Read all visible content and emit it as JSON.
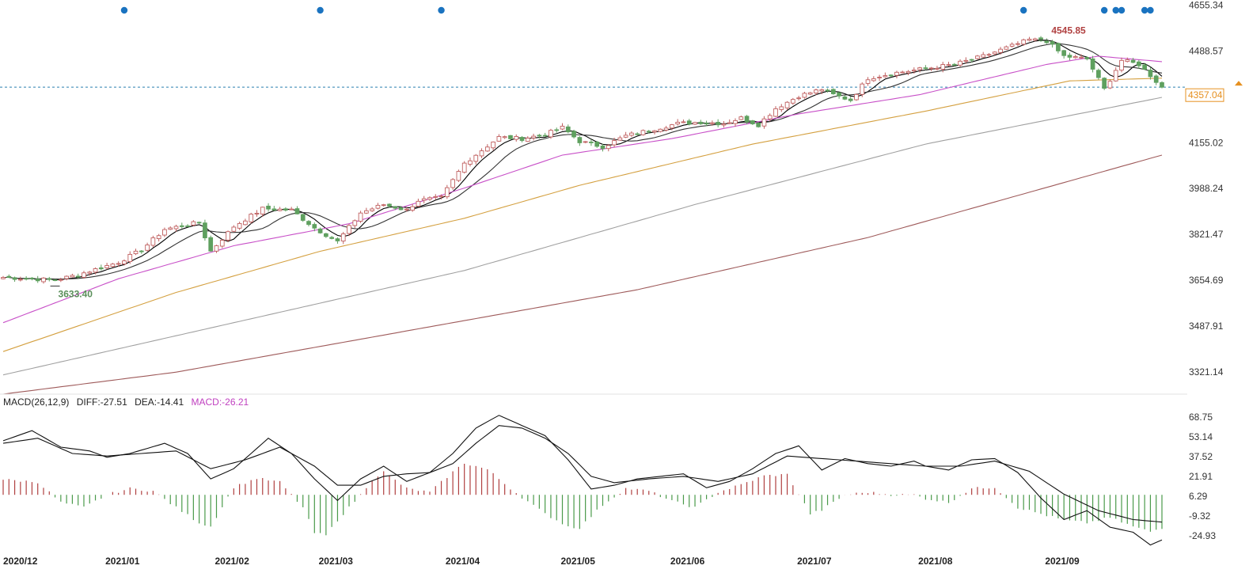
{
  "chart_data": [
    {
      "type": "candlestick",
      "panel": "price",
      "ylim": [
        3240,
        4660
      ],
      "y_ticks": [
        4655.34,
        4488.57,
        4321.8,
        4155.02,
        3988.24,
        3821.47,
        3654.69,
        3487.91,
        3321.14
      ],
      "y_tick_labels": [
        "4655.34",
        "4488.57",
        "4321.80",
        "4155.02",
        "3988.24",
        "3821.47",
        "3654.69",
        "3487.91",
        "3321.14"
      ],
      "x_months": [
        {
          "label": "2020/12",
          "index": 0
        },
        {
          "label": "2021/01",
          "index": 18
        },
        {
          "label": "2021/02",
          "index": 37
        },
        {
          "label": "2021/03",
          "index": 55
        },
        {
          "label": "2021/04",
          "index": 77
        },
        {
          "label": "2021/05",
          "index": 97
        },
        {
          "label": "2021/06",
          "index": 116
        },
        {
          "label": "2021/07",
          "index": 138
        },
        {
          "label": "2021/08",
          "index": 159
        },
        {
          "label": "2021/09",
          "index": 181
        }
      ],
      "n_bars": 202,
      "price_keypoints": [
        [
          0,
          3665
        ],
        [
          9,
          3655
        ],
        [
          13,
          3675
        ],
        [
          20,
          3720
        ],
        [
          24,
          3765
        ],
        [
          28,
          3840
        ],
        [
          34,
          3865
        ],
        [
          36,
          3760
        ],
        [
          40,
          3850
        ],
        [
          45,
          3915
        ],
        [
          50,
          3910
        ],
        [
          54,
          3845
        ],
        [
          58,
          3795
        ],
        [
          62,
          3900
        ],
        [
          66,
          3930
        ],
        [
          70,
          3910
        ],
        [
          72,
          3945
        ],
        [
          76,
          3955
        ],
        [
          80,
          4080
        ],
        [
          86,
          4175
        ],
        [
          90,
          4170
        ],
        [
          94,
          4185
        ],
        [
          97,
          4210
        ],
        [
          100,
          4160
        ],
        [
          104,
          4140
        ],
        [
          108,
          4180
        ],
        [
          112,
          4200
        ],
        [
          117,
          4225
        ],
        [
          121,
          4230
        ],
        [
          125,
          4225
        ],
        [
          128,
          4245
        ],
        [
          131,
          4220
        ],
        [
          134,
          4280
        ],
        [
          138,
          4325
        ],
        [
          142,
          4350
        ],
        [
          144,
          4330
        ],
        [
          147,
          4310
        ],
        [
          150,
          4390
        ],
        [
          155,
          4410
        ],
        [
          160,
          4425
        ],
        [
          165,
          4440
        ],
        [
          170,
          4470
        ],
        [
          174,
          4500
        ],
        [
          178,
          4530
        ],
        [
          181,
          4525
        ],
        [
          184,
          4470
        ],
        [
          188,
          4460
        ],
        [
          191,
          4350
        ],
        [
          194,
          4455
        ],
        [
          197,
          4440
        ],
        [
          199,
          4400
        ],
        [
          201,
          4357
        ]
      ],
      "moving_averages": [
        {
          "name": "MA5",
          "color": "#000000",
          "lag": 2
        },
        {
          "name": "MA10",
          "color": "#333333",
          "lag": 5
        },
        {
          "name": "MA20",
          "color": "#c850c8",
          "keypoints": [
            [
              0,
              3500
            ],
            [
              20,
              3660
            ],
            [
              40,
              3780
            ],
            [
              60,
              3860
            ],
            [
              80,
              3990
            ],
            [
              97,
              4110
            ],
            [
              116,
              4170
            ],
            [
              138,
              4260
            ],
            [
              159,
              4330
            ],
            [
              181,
              4440
            ],
            [
              190,
              4470
            ],
            [
              201,
              4450
            ]
          ]
        },
        {
          "name": "MA60",
          "color": "#d4a040",
          "keypoints": [
            [
              0,
              3395
            ],
            [
              30,
              3610
            ],
            [
              55,
              3760
            ],
            [
              80,
              3880
            ],
            [
              100,
              4000
            ],
            [
              130,
              4150
            ],
            [
              160,
              4270
            ],
            [
              185,
              4380
            ],
            [
              201,
              4390
            ]
          ]
        },
        {
          "name": "MA120",
          "color": "#a0a0a0",
          "keypoints": [
            [
              0,
              3310
            ],
            [
              40,
              3500
            ],
            [
              80,
              3690
            ],
            [
              120,
              3930
            ],
            [
              160,
              4150
            ],
            [
              201,
              4320
            ]
          ]
        },
        {
          "name": "MA250",
          "color": "#9e5a5a",
          "keypoints": [
            [
              0,
              3240
            ],
            [
              30,
              3320
            ],
            [
              70,
              3470
            ],
            [
              110,
              3620
            ],
            [
              150,
              3810
            ],
            [
              201,
              4110
            ]
          ]
        }
      ],
      "last_price": 4357.04,
      "last_price_label": "4357.04",
      "reference_line": 4357.04,
      "high_annotation": {
        "label": "4545.85",
        "value": 4545.85,
        "index": 181
      },
      "low_annotation": {
        "label": "3633.40",
        "value": 3633.4,
        "index": 9
      },
      "signal_dots": [
        21,
        55,
        76,
        177,
        191,
        193,
        194,
        198,
        199
      ],
      "colors": {
        "up": "#c06060",
        "down": "#5fa05f",
        "grid_ref": "#2a7fb0",
        "last_price": "#e69020",
        "high_label": "#b04040",
        "low_label": "#5a8f5a",
        "dots": "#1a73c0"
      }
    },
    {
      "type": "macd",
      "panel": "macd",
      "title": "MACD(26,12,9)",
      "legend": [
        {
          "label": "DIFF:-27.51",
          "color": "#222222"
        },
        {
          "label": "DEA:-14.41",
          "color": "#222222"
        },
        {
          "label": "MACD:-26.21",
          "color": "#c040c0"
        }
      ],
      "ylim": [
        -36,
        73
      ],
      "y_ticks": [
        68.75,
        53.14,
        37.52,
        21.91,
        6.29,
        -9.32,
        -24.93
      ],
      "y_tick_labels": [
        "68.75",
        "53.14",
        "37.52",
        "21.91",
        "6.29",
        "-9.32",
        "-24.93"
      ],
      "diff_keypoints": [
        [
          0,
          50
        ],
        [
          5,
          58
        ],
        [
          10,
          45
        ],
        [
          15,
          42
        ],
        [
          18,
          37
        ],
        [
          22,
          40
        ],
        [
          28,
          48
        ],
        [
          32,
          40
        ],
        [
          36,
          20
        ],
        [
          40,
          28
        ],
        [
          46,
          52
        ],
        [
          50,
          40
        ],
        [
          54,
          20
        ],
        [
          58,
          3
        ],
        [
          62,
          20
        ],
        [
          66,
          30
        ],
        [
          70,
          18
        ],
        [
          74,
          25
        ],
        [
          78,
          40
        ],
        [
          82,
          60
        ],
        [
          86,
          70
        ],
        [
          90,
          62
        ],
        [
          94,
          54
        ],
        [
          98,
          35
        ],
        [
          102,
          12
        ],
        [
          106,
          15
        ],
        [
          110,
          20
        ],
        [
          114,
          22
        ],
        [
          118,
          24
        ],
        [
          122,
          13
        ],
        [
          126,
          18
        ],
        [
          130,
          28
        ],
        [
          134,
          40
        ],
        [
          138,
          46
        ],
        [
          142,
          27
        ],
        [
          146,
          36
        ],
        [
          150,
          32
        ],
        [
          154,
          30
        ],
        [
          158,
          34
        ],
        [
          160,
          30
        ],
        [
          164,
          27
        ],
        [
          168,
          35
        ],
        [
          172,
          36
        ],
        [
          176,
          25
        ],
        [
          180,
          5
        ],
        [
          184,
          -12
        ],
        [
          188,
          -5
        ],
        [
          192,
          -18
        ],
        [
          196,
          -22
        ],
        [
          199,
          -32
        ],
        [
          201,
          -28
        ]
      ],
      "dea_keypoints": [
        [
          0,
          48
        ],
        [
          6,
          52
        ],
        [
          12,
          40
        ],
        [
          18,
          38
        ],
        [
          24,
          40
        ],
        [
          30,
          42
        ],
        [
          36,
          28
        ],
        [
          42,
          35
        ],
        [
          48,
          45
        ],
        [
          54,
          30
        ],
        [
          58,
          15
        ],
        [
          62,
          15
        ],
        [
          66,
          22
        ],
        [
          70,
          24
        ],
        [
          74,
          25
        ],
        [
          78,
          32
        ],
        [
          82,
          48
        ],
        [
          86,
          62
        ],
        [
          90,
          60
        ],
        [
          94,
          52
        ],
        [
          98,
          40
        ],
        [
          102,
          22
        ],
        [
          106,
          17
        ],
        [
          112,
          20
        ],
        [
          118,
          22
        ],
        [
          124,
          18
        ],
        [
          130,
          24
        ],
        [
          136,
          38
        ],
        [
          142,
          36
        ],
        [
          148,
          34
        ],
        [
          154,
          32
        ],
        [
          160,
          30
        ],
        [
          166,
          30
        ],
        [
          172,
          34
        ],
        [
          178,
          26
        ],
        [
          184,
          8
        ],
        [
          190,
          -5
        ],
        [
          196,
          -12
        ],
        [
          201,
          -14
        ]
      ],
      "hist_keypoints": [
        [
          0,
          12
        ],
        [
          6,
          10
        ],
        [
          10,
          -6
        ],
        [
          14,
          -10
        ],
        [
          18,
          0
        ],
        [
          22,
          5
        ],
        [
          26,
          3
        ],
        [
          30,
          -10
        ],
        [
          34,
          -22
        ],
        [
          36,
          -25
        ],
        [
          40,
          6
        ],
        [
          44,
          13
        ],
        [
          48,
          10
        ],
        [
          52,
          -10
        ],
        [
          54,
          -30
        ],
        [
          56,
          -32
        ],
        [
          58,
          -20
        ],
        [
          62,
          0
        ],
        [
          64,
          12
        ],
        [
          66,
          18
        ],
        [
          70,
          5
        ],
        [
          74,
          2
        ],
        [
          78,
          18
        ],
        [
          80,
          25
        ],
        [
          84,
          20
        ],
        [
          88,
          5
        ],
        [
          90,
          -2
        ],
        [
          94,
          -15
        ],
        [
          98,
          -25
        ],
        [
          100,
          -26
        ],
        [
          104,
          -8
        ],
        [
          108,
          5
        ],
        [
          112,
          3
        ],
        [
          116,
          -5
        ],
        [
          120,
          -10
        ],
        [
          124,
          2
        ],
        [
          128,
          8
        ],
        [
          132,
          15
        ],
        [
          136,
          16
        ],
        [
          140,
          -15
        ],
        [
          142,
          -12
        ],
        [
          146,
          0
        ],
        [
          150,
          2
        ],
        [
          154,
          0
        ],
        [
          158,
          0
        ],
        [
          160,
          -3
        ],
        [
          164,
          -6
        ],
        [
          168,
          5
        ],
        [
          172,
          6
        ],
        [
          176,
          -10
        ],
        [
          180,
          -15
        ],
        [
          184,
          -20
        ],
        [
          188,
          -22
        ],
        [
          192,
          -18
        ],
        [
          196,
          -25
        ],
        [
          199,
          -29
        ],
        [
          201,
          -26
        ]
      ],
      "colors": {
        "diff": "#111111",
        "dea": "#111111",
        "hist_up": "#b04040",
        "hist_down": "#4a9a4a"
      }
    }
  ],
  "icons": {
    "last_price_marker": "up-arrow-icon",
    "signal": "signal-dot-icon"
  }
}
